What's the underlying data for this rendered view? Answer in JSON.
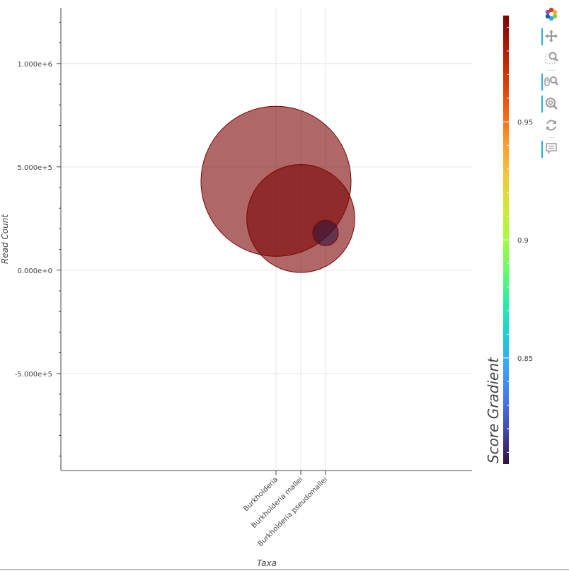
{
  "chart_data": {
    "type": "scatter",
    "xlabel": "Taxa",
    "ylabel": "Read Count",
    "categories": [
      "Burkholderia",
      "Burkholderia mallei",
      "Burkholderia pseudomallei"
    ],
    "points": [
      {
        "taxon": "Burkholderia",
        "read_count": 430000,
        "score": 0.995,
        "relative_size": 1.0
      },
      {
        "taxon": "Burkholderia mallei",
        "read_count": 250000,
        "score": 0.99,
        "relative_size": 0.72
      },
      {
        "taxon": "Burkholderia pseudomallei",
        "read_count": 180000,
        "score": 0.81,
        "relative_size": 0.17
      }
    ],
    "y_ticks": [
      {
        "value": 1000000,
        "label": "1.000e+6"
      },
      {
        "value": 500000,
        "label": "5.000e+5"
      },
      {
        "value": 0,
        "label": "0.000e+0"
      },
      {
        "value": -500000,
        "label": "-5.000e+5"
      }
    ],
    "ylim": [
      -970000,
      1270000
    ],
    "grid": true,
    "colorbar": {
      "title": "Score Gradient",
      "range": [
        0.805,
        0.995
      ],
      "ticks": [
        {
          "value": 0.85,
          "label": "0.85"
        },
        {
          "value": 0.9,
          "label": "0.9"
        },
        {
          "value": 0.95,
          "label": "0.95"
        }
      ],
      "palette": [
        "#30123b",
        "#4145ab",
        "#4675ed",
        "#39a2fc",
        "#1bcfd4",
        "#24eca6",
        "#61fc6c",
        "#a4fc3b",
        "#d1e834",
        "#f3c63a",
        "#fe9b2d",
        "#f36315",
        "#d93806",
        "#b11901",
        "#7a0402"
      ]
    },
    "marker_fill_alpha": 0.6,
    "marker_line_color": "#7a0402"
  },
  "toolbar": {
    "tools": [
      {
        "name": "bokeh-logo",
        "active": false
      },
      {
        "name": "pan-tool",
        "active": true
      },
      {
        "name": "box-zoom-tool",
        "active": false
      },
      {
        "name": "wheel-zoom-tool",
        "active": true
      },
      {
        "name": "zoom-in-tool",
        "active": true
      },
      {
        "name": "reset-tool",
        "active": false
      },
      {
        "name": "hover-tool",
        "active": true
      }
    ]
  }
}
